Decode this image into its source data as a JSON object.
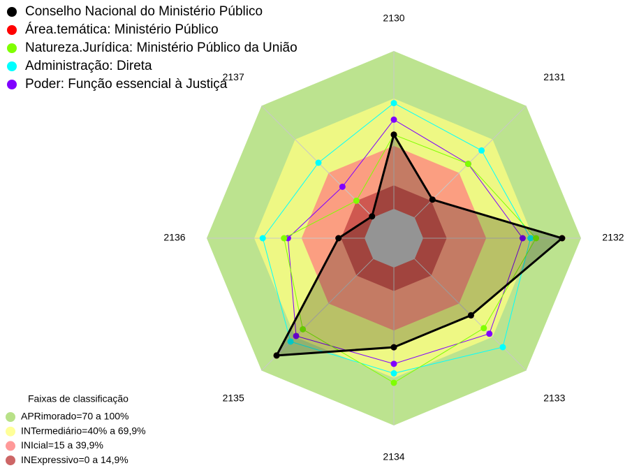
{
  "chart_data": {
    "type": "radar",
    "categories": [
      "2130",
      "2131",
      "2132",
      "2133",
      "2134",
      "2135",
      "2136",
      "2137"
    ],
    "rlim": [
      0,
      100
    ],
    "series": [
      {
        "name": "Conselho Nacional do Ministério Público",
        "color": "#000000",
        "values": [
          47,
          16,
          88,
          50.5,
          50.5,
          86.5,
          16.5,
          1
        ]
      },
      {
        "name": "Área.temática: Ministério Público",
        "color": "#ff0000",
        "values": [
          47,
          16,
          88,
          50.5,
          50.5,
          86.5,
          16.5,
          1
        ]
      },
      {
        "name": "Natureza.Jurídica: Ministério Público da União",
        "color": "#7fff00",
        "values": [
          47,
          48,
          71.5,
          62,
          73,
          63,
          51,
          15
        ]
      },
      {
        "name": "Administração: Direta",
        "color": "#00ffff",
        "values": [
          67,
          60,
          68,
          79,
          67,
          74,
          64.5,
          49
        ]
      },
      {
        "name": "Poder: Função essencial à Justiça",
        "color": "#8000ff",
        "values": [
          56.5,
          48,
          63,
          67,
          61,
          69,
          48.5,
          27.5
        ]
      }
    ],
    "legend_title": "Faixas de classificação",
    "bands": [
      {
        "label": "APRimorado=70 a 100%",
        "color": "#a6d96a",
        "min": 70,
        "max": 100
      },
      {
        "label": "INTermediário=40% a 69,9%",
        "color": "#ffff80",
        "min": 40,
        "max": 69.9
      },
      {
        "label": "INIcial=15 a 39,9%",
        "color": "#ff8080",
        "min": 15,
        "max": 39.9
      },
      {
        "label": "INExpressivo=0 a 14,9%",
        "color": "#c04040",
        "min": 0,
        "max": 14.9
      }
    ]
  }
}
